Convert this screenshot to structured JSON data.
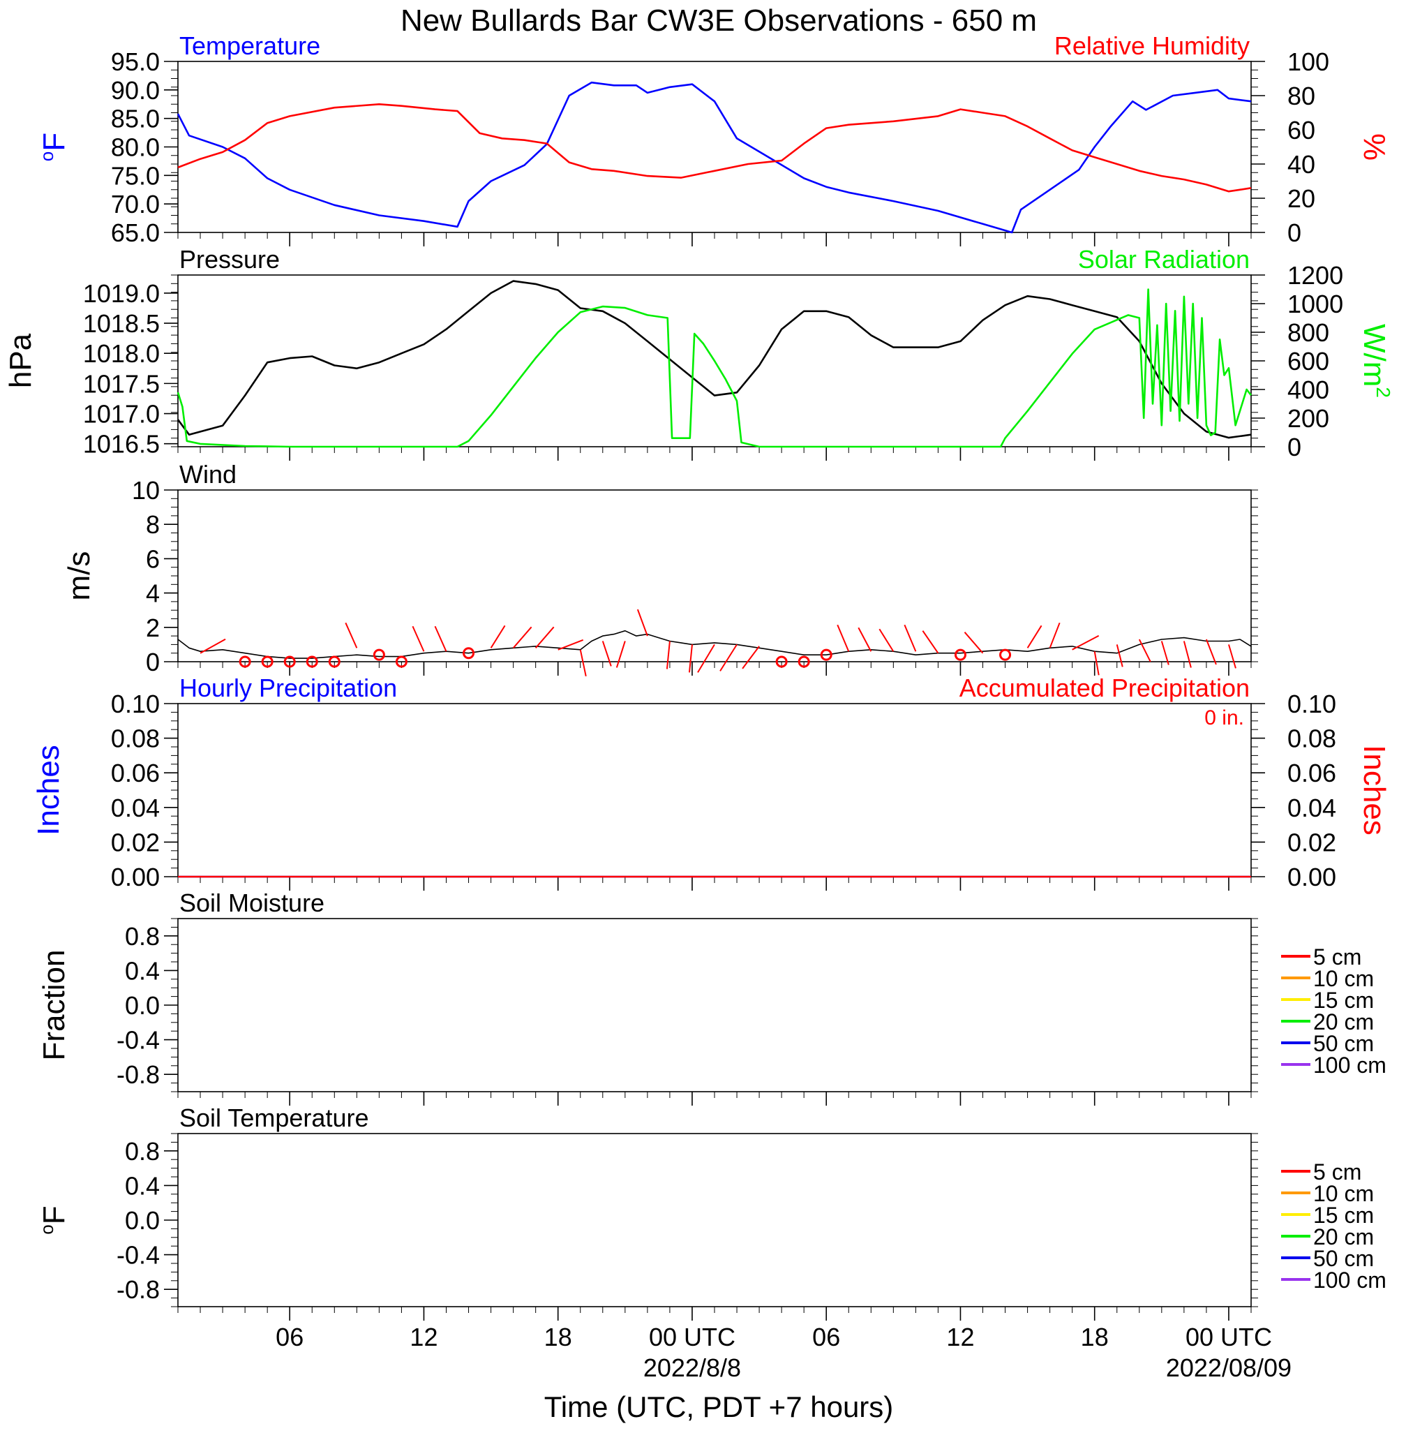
{
  "title": "New Bullards Bar CW3E Observations - 650 m",
  "xlabel": "Time (UTC, PDT +7 hours)",
  "x_axis": {
    "ticks": [
      {
        "hour": 6,
        "label": "06"
      },
      {
        "hour": 12,
        "label": "12"
      },
      {
        "hour": 18,
        "label": "18"
      },
      {
        "hour": 24,
        "label": "00 UTC"
      },
      {
        "hour": 30,
        "label": "06"
      },
      {
        "hour": 36,
        "label": "12"
      },
      {
        "hour": 42,
        "label": "18"
      },
      {
        "hour": 48,
        "label": "00 UTC"
      }
    ],
    "date_labels": [
      {
        "hour": 24,
        "label": "2022/8/8"
      },
      {
        "hour": 48,
        "label": "2022/08/09"
      }
    ],
    "range_hours": [
      1,
      49
    ]
  },
  "colors": {
    "temperature": "#0000ff",
    "humidity": "#ff0000",
    "pressure": "#000000",
    "solar": "#00ee00",
    "wind": "#000000",
    "wind_barb": "#ff0000",
    "hourly_precip": "#0000ff",
    "accum_precip": "#ff0000"
  },
  "soil_legend": [
    {
      "label": "5 cm",
      "color": "#ff0000"
    },
    {
      "label": "10 cm",
      "color": "#ff9900"
    },
    {
      "label": "15 cm",
      "color": "#ffee00"
    },
    {
      "label": "20 cm",
      "color": "#00ee00"
    },
    {
      "label": "50 cm",
      "color": "#0000ee"
    },
    {
      "label": "100 cm",
      "color": "#9933ee"
    }
  ],
  "chart_data": [
    {
      "type": "line",
      "panel": "temperature-humidity",
      "left_title": "Temperature",
      "right_title": "Relative Humidity",
      "ylabel_left": "oF",
      "ylabel_right": "%",
      "ylim_left": [
        65,
        95
      ],
      "ylim_right": [
        0,
        100
      ],
      "yticks_left": [
        "95.0",
        "90.0",
        "85.0",
        "80.0",
        "75.0",
        "70.0",
        "65.0"
      ],
      "yticks_right": [
        "100",
        "80",
        "60",
        "40",
        "20",
        "0"
      ],
      "series": [
        {
          "name": "Temperature",
          "axis": "left",
          "x": [
            1,
            1.5,
            3,
            4,
            5,
            6,
            8,
            10,
            12,
            13.5,
            14,
            15,
            16.5,
            17.5,
            18.5,
            19.5,
            20.5,
            21.5,
            22,
            23,
            24,
            25,
            26,
            27.5,
            29,
            30,
            31,
            33,
            35,
            37,
            38.3,
            38.7,
            40,
            41.3,
            42,
            42.7,
            43.7,
            44.3,
            45.5,
            46.5,
            47.5,
            48,
            49
          ],
          "y": [
            85.8,
            82,
            80,
            78,
            74.5,
            72.5,
            69.8,
            68,
            67,
            66,
            70.5,
            74,
            76.8,
            80.5,
            89,
            91.3,
            90.8,
            90.8,
            89.5,
            90.5,
            91,
            88,
            81.5,
            78,
            74.5,
            73,
            72,
            70.5,
            68.8,
            66.5,
            65,
            69,
            72.5,
            76,
            80,
            83.5,
            88,
            86.5,
            89,
            89.5,
            90,
            88.5,
            88
          ]
        },
        {
          "name": "Relative Humidity",
          "axis": "right",
          "x": [
            1,
            2,
            3,
            4,
            5,
            6,
            8,
            10,
            11,
            12.5,
            13.5,
            14.5,
            15.5,
            16.5,
            17.5,
            18.5,
            19.5,
            20.5,
            22,
            23.5,
            25,
            26.5,
            28,
            29,
            30,
            31,
            33,
            35,
            36,
            37,
            38,
            39,
            40,
            41,
            42,
            43,
            44,
            45,
            46,
            47,
            48,
            48.5,
            49
          ],
          "y": [
            38,
            43,
            47,
            54,
            64,
            68,
            73,
            75,
            74,
            72,
            71,
            58,
            55,
            54,
            52,
            41,
            37,
            36,
            33,
            32,
            36,
            40,
            42,
            52,
            61,
            63,
            65,
            68,
            72,
            70,
            68,
            62,
            55,
            48,
            44,
            40,
            36,
            33,
            31,
            28,
            24,
            25,
            26
          ]
        }
      ]
    },
    {
      "type": "line",
      "panel": "pressure-solar",
      "left_title": "Pressure",
      "right_title": "Solar Radiation",
      "ylabel_left": "hPa",
      "ylabel_right": "W/m2",
      "ylim_left": [
        16.45,
        19.3
      ],
      "ylim_right": [
        0,
        1200
      ],
      "yticks_left": [
        "1019.0",
        "1018.5",
        "1018.0",
        "1017.5",
        "1017.0",
        "1016.5"
      ],
      "yticks_right": [
        "1200",
        "1000",
        "800",
        "600",
        "400",
        "200",
        "0"
      ],
      "series": [
        {
          "name": "Pressure",
          "axis": "left",
          "x": [
            1,
            1.5,
            3,
            4,
            5,
            6,
            7,
            8,
            9,
            10,
            11,
            12,
            13,
            14,
            15,
            16,
            17,
            18,
            19,
            20,
            21,
            22,
            23,
            24,
            25,
            26,
            27,
            28,
            29,
            30,
            31,
            32,
            33,
            34,
            35,
            36,
            37,
            38,
            39,
            40,
            41,
            42,
            43,
            44,
            45,
            46,
            47,
            48,
            49
          ],
          "y": [
            16.9,
            16.65,
            16.8,
            17.3,
            17.85,
            17.92,
            17.95,
            17.8,
            17.75,
            17.85,
            18.0,
            18.15,
            18.4,
            18.7,
            19.0,
            19.2,
            19.15,
            19.05,
            18.75,
            18.7,
            18.5,
            18.2,
            17.9,
            17.6,
            17.3,
            17.35,
            17.8,
            18.4,
            18.7,
            18.7,
            18.6,
            18.3,
            18.1,
            18.1,
            18.1,
            18.2,
            18.55,
            18.8,
            18.95,
            18.9,
            18.8,
            18.7,
            18.6,
            18.2,
            17.5,
            17.0,
            16.7,
            16.6,
            16.65
          ]
        },
        {
          "name": "Solar Radiation",
          "axis": "right",
          "x": [
            1,
            1.2,
            1.4,
            2,
            4,
            6,
            8,
            10,
            12,
            13.5,
            14,
            15,
            16,
            17,
            18,
            19,
            20,
            21,
            22,
            22.9,
            23.1,
            23.4,
            23.9,
            24.1,
            24.5,
            25,
            25.5,
            26,
            26.2,
            27,
            28,
            30,
            32,
            34,
            36,
            37.8,
            38,
            39,
            40,
            41,
            42,
            43.5,
            44,
            44.2,
            44.4,
            44.6,
            44.8,
            45,
            45.2,
            45.4,
            45.6,
            45.8,
            46,
            46.2,
            46.4,
            46.6,
            46.8,
            47,
            47.2,
            47.4,
            47.6,
            47.8,
            48,
            48.3,
            48.6,
            48.8,
            49
          ],
          "y": [
            380,
            280,
            40,
            20,
            5,
            0,
            0,
            0,
            0,
            0,
            40,
            220,
            420,
            620,
            800,
            940,
            980,
            970,
            920,
            900,
            60,
            60,
            60,
            790,
            720,
            600,
            470,
            320,
            30,
            0,
            0,
            0,
            0,
            0,
            0,
            0,
            60,
            250,
            450,
            650,
            820,
            920,
            900,
            200,
            1100,
            300,
            850,
            150,
            1000,
            250,
            950,
            180,
            1050,
            300,
            1000,
            200,
            900,
            150,
            80,
            100,
            750,
            500,
            550,
            150,
            300,
            400,
            360
          ]
        }
      ]
    },
    {
      "type": "line",
      "panel": "wind",
      "left_title": "Wind",
      "ylabel_left": "m/s",
      "ylim_left": [
        0,
        10
      ],
      "yticks_left": [
        "10",
        "8",
        "6",
        "4",
        "2",
        "0"
      ],
      "series": [
        {
          "name": "Wind",
          "x": [
            1,
            1.5,
            2,
            3,
            4,
            5,
            6,
            7,
            8,
            9,
            10,
            11,
            12,
            13,
            14,
            15,
            16,
            17,
            18,
            19,
            19.5,
            20,
            20.5,
            21,
            21.5,
            22,
            22.5,
            23,
            23.5,
            24,
            25,
            26,
            27,
            28,
            29,
            30,
            31,
            32,
            33,
            34,
            35,
            36,
            37,
            38,
            39,
            40,
            41,
            42,
            43,
            44,
            45,
            46,
            47,
            48,
            48.5,
            49
          ],
          "y": [
            1.3,
            0.8,
            0.6,
            0.7,
            0.5,
            0.3,
            0.2,
            0.2,
            0.3,
            0.4,
            0.3,
            0.3,
            0.5,
            0.6,
            0.5,
            0.7,
            0.8,
            0.9,
            0.8,
            0.7,
            1.2,
            1.5,
            1.6,
            1.8,
            1.5,
            1.6,
            1.4,
            1.2,
            1.1,
            1.0,
            1.1,
            1.0,
            0.8,
            0.6,
            0.4,
            0.4,
            0.6,
            0.7,
            0.6,
            0.4,
            0.5,
            0.5,
            0.6,
            0.7,
            0.6,
            0.8,
            0.9,
            0.6,
            0.5,
            1.0,
            1.3,
            1.4,
            1.2,
            1.2,
            1.3,
            0.9
          ]
        }
      ],
      "barbs": [
        {
          "hour": 2,
          "speed": 0.5,
          "dx": 36,
          "dy": -20
        },
        {
          "hour": 4,
          "speed": 0,
          "calm": true
        },
        {
          "hour": 5,
          "speed": 0,
          "calm": true
        },
        {
          "hour": 6,
          "speed": 0,
          "calm": true
        },
        {
          "hour": 7,
          "speed": 0,
          "calm": true
        },
        {
          "hour": 8,
          "speed": 0,
          "calm": true
        },
        {
          "hour": 9,
          "speed": 0.8,
          "dx": -16,
          "dy": -36
        },
        {
          "hour": 10,
          "speed": 0.4,
          "calm": true
        },
        {
          "hour": 11,
          "speed": 0,
          "calm": true
        },
        {
          "hour": 12,
          "speed": 0.6,
          "dx": -16,
          "dy": -36
        },
        {
          "hour": 13,
          "speed": 0.6,
          "dx": -16,
          "dy": -36
        },
        {
          "hour": 14,
          "speed": 0.5,
          "calm": true
        },
        {
          "hour": 15,
          "speed": 0.8,
          "dx": 20,
          "dy": -32
        },
        {
          "hour": 16,
          "speed": 0.8,
          "dx": 26,
          "dy": -30
        },
        {
          "hour": 17,
          "speed": 0.8,
          "dx": 26,
          "dy": -30
        },
        {
          "hour": 18,
          "speed": 0.7,
          "dx": 36,
          "dy": -14
        },
        {
          "hour": 19,
          "speed": 0.7,
          "dx": 8,
          "dy": 38
        },
        {
          "hour": 20,
          "speed": 1.2,
          "dx": 12,
          "dy": 36
        },
        {
          "hour": 21,
          "speed": 1.2,
          "dx": -12,
          "dy": 38
        },
        {
          "hour": 22,
          "speed": 1.5,
          "dx": -14,
          "dy": -38
        },
        {
          "hour": 23,
          "speed": 1.2,
          "dx": -4,
          "dy": 40
        },
        {
          "hour": 24,
          "speed": 1.0,
          "dx": -4,
          "dy": 40
        },
        {
          "hour": 25,
          "speed": 1.0,
          "dx": -24,
          "dy": 40
        },
        {
          "hour": 26,
          "speed": 1.0,
          "dx": -24,
          "dy": 38
        },
        {
          "hour": 27,
          "speed": 0.9,
          "dx": -24,
          "dy": 32
        },
        {
          "hour": 28,
          "speed": 0,
          "calm": true
        },
        {
          "hour": 29,
          "speed": 0,
          "calm": true
        },
        {
          "hour": 30,
          "speed": 0.4,
          "calm": true
        },
        {
          "hour": 31,
          "speed": 0.6,
          "dx": -16,
          "dy": -38
        },
        {
          "hour": 32,
          "speed": 0.6,
          "dx": -18,
          "dy": -34
        },
        {
          "hour": 33,
          "speed": 0.6,
          "dx": -20,
          "dy": -32
        },
        {
          "hour": 34,
          "speed": 0.6,
          "dx": -16,
          "dy": -38
        },
        {
          "hour": 35,
          "speed": 0.5,
          "dx": -22,
          "dy": -32
        },
        {
          "hour": 36,
          "speed": 0.4,
          "calm": true
        },
        {
          "hour": 37,
          "speed": 0.5,
          "dx": -26,
          "dy": -30
        },
        {
          "hour": 38,
          "speed": 0.4,
          "calm": true
        },
        {
          "hour": 39,
          "speed": 0.8,
          "dx": 20,
          "dy": -32
        },
        {
          "hour": 40,
          "speed": 0.8,
          "dx": 14,
          "dy": -36
        },
        {
          "hour": 41,
          "speed": 0.7,
          "dx": 38,
          "dy": -20
        },
        {
          "hour": 42,
          "speed": 0.6,
          "dx": 6,
          "dy": 34
        },
        {
          "hour": 43,
          "speed": 1.0,
          "dx": 8,
          "dy": 32
        },
        {
          "hour": 44,
          "speed": 1.3,
          "dx": 16,
          "dy": 32
        },
        {
          "hour": 45,
          "speed": 1.2,
          "dx": 10,
          "dy": 34
        },
        {
          "hour": 46,
          "speed": 1.2,
          "dx": 10,
          "dy": 38
        },
        {
          "hour": 47,
          "speed": 1.3,
          "dx": 14,
          "dy": 36
        },
        {
          "hour": 48,
          "speed": 1.0,
          "dx": 10,
          "dy": 34
        }
      ]
    },
    {
      "type": "line",
      "panel": "precipitation",
      "left_title": "Hourly Precipitation",
      "right_title": "Accumulated Precipitation",
      "right_note": "0 in.",
      "ylabel_left": "Inches",
      "ylabel_right": "Inches",
      "ylim_left": [
        0,
        0.1
      ],
      "ylim_right": [
        0,
        0.1
      ],
      "yticks_left": [
        "0.10",
        "0.08",
        "0.06",
        "0.04",
        "0.02",
        "0.00"
      ],
      "yticks_right": [
        "0.10",
        "0.08",
        "0.06",
        "0.04",
        "0.02",
        "0.00"
      ],
      "series": [
        {
          "name": "Hourly Precipitation",
          "axis": "left",
          "x": [
            1,
            49
          ],
          "y": [
            0,
            0
          ]
        },
        {
          "name": "Accumulated Precipitation",
          "axis": "right",
          "x": [
            1,
            49
          ],
          "y": [
            0,
            0
          ]
        }
      ]
    },
    {
      "type": "line",
      "panel": "soil-moisture",
      "left_title": "Soil Moisture",
      "ylabel_left": "Fraction",
      "ylim_left": [
        -1,
        1
      ],
      "yticks_left": [
        "0.8",
        "0.4",
        "0.0",
        "-0.4",
        "-0.8"
      ],
      "series": []
    },
    {
      "type": "line",
      "panel": "soil-temperature",
      "left_title": "Soil Temperature",
      "ylabel_left": "oF",
      "ylim_left": [
        -1,
        1
      ],
      "yticks_left": [
        "0.8",
        "0.4",
        "0.0",
        "-0.4",
        "-0.8"
      ],
      "series": []
    }
  ]
}
